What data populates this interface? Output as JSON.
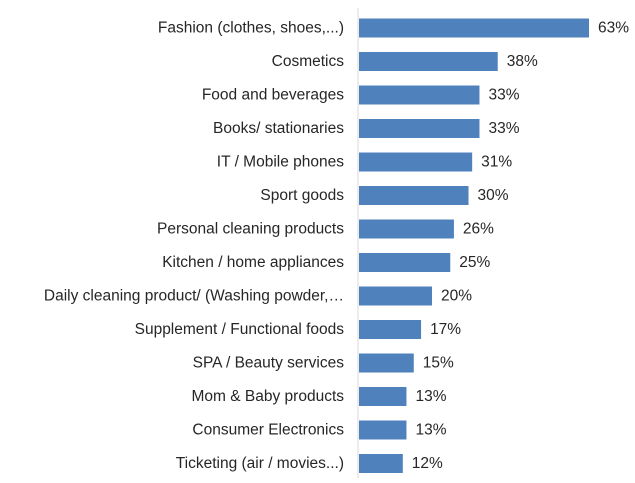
{
  "chart_data": {
    "type": "bar",
    "orientation": "horizontal",
    "categories": [
      "Fashion (clothes, shoes,...)",
      "Cosmetics",
      "Food and beverages",
      "Books/ stationaries",
      "IT / Mobile phones",
      "Sport goods",
      "Personal cleaning products",
      "Kitchen / home appliances",
      "Daily cleaning product/ (Washing powder,…",
      "Supplement / Functional foods",
      "SPA / Beauty services",
      "Mom & Baby products",
      "Consumer Electronics",
      "Ticketing (air / movies...)"
    ],
    "values": [
      63,
      38,
      33,
      33,
      31,
      30,
      26,
      25,
      20,
      17,
      15,
      13,
      13,
      12
    ],
    "value_labels": [
      "63%",
      "38%",
      "33%",
      "33%",
      "31%",
      "30%",
      "26%",
      "25%",
      "20%",
      "17%",
      "15%",
      "13%",
      "13%",
      "12%"
    ],
    "value_unit": "%",
    "xlim": [
      0,
      63
    ],
    "grid": false,
    "legend": "none",
    "bar_color": "#4f81bd",
    "axis_color": "#d9d9d9",
    "label_color": "#262626"
  }
}
